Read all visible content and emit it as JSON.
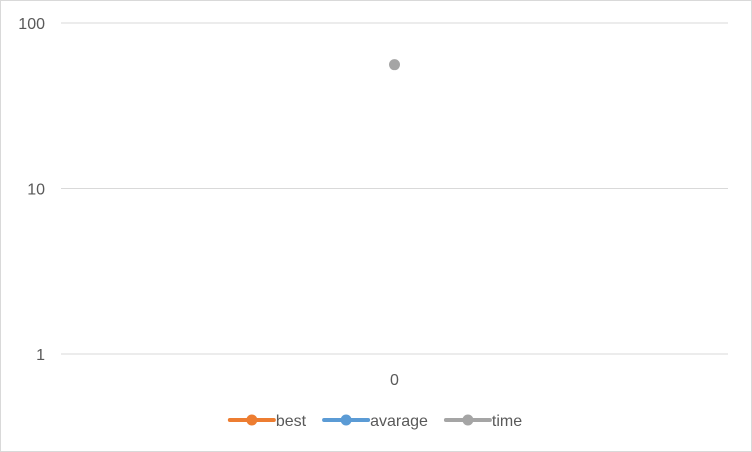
{
  "chart_data": {
    "type": "line",
    "title": "",
    "xlabel": "",
    "ylabel": "",
    "x_categories": [
      "0"
    ],
    "y_scale": "log",
    "ylim": [
      1,
      100
    ],
    "y_ticks": [
      "1",
      "10",
      "100"
    ],
    "grid": true,
    "legend_position": "bottom",
    "series": [
      {
        "name": "best",
        "color": "#ed7d31",
        "values": [
          null
        ]
      },
      {
        "name": "avarage",
        "color": "#5b9bd5",
        "values": [
          null
        ]
      },
      {
        "name": "time",
        "color": "#a5a5a5",
        "values": [
          56
        ]
      }
    ]
  }
}
